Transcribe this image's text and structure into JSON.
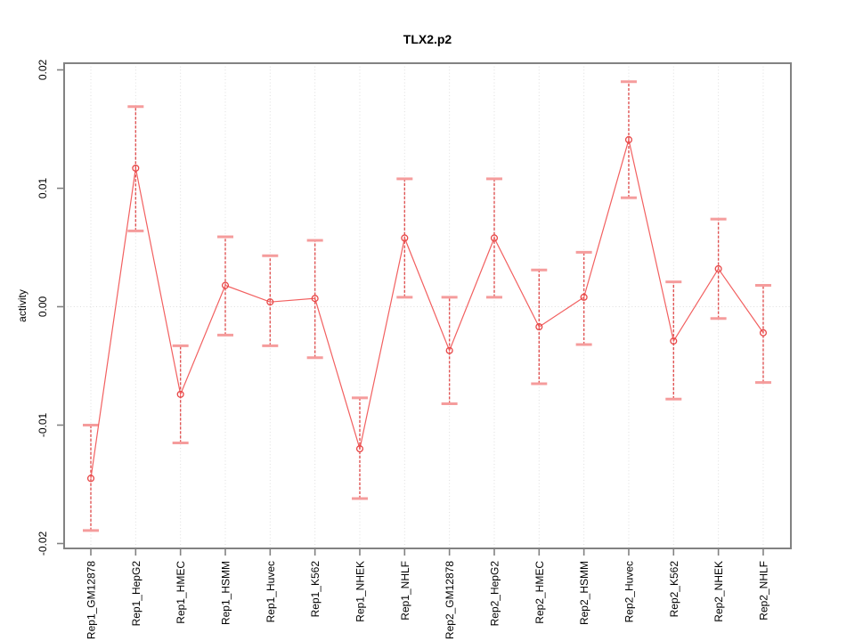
{
  "figure": {
    "background": "#ffffff"
  },
  "chart_data": {
    "type": "line",
    "title": "TLX2.p2",
    "xlabel": "",
    "ylabel": "activity",
    "ylim": [
      -0.02,
      0.02
    ],
    "ytick_values": [
      -0.02,
      -0.01,
      0,
      0.01,
      0.02
    ],
    "ytick_labels": [
      "-0.02",
      "-0.01",
      "0.00",
      "0.01",
      "0.02"
    ],
    "grid": {
      "vertical_dotted_per_category": true,
      "horizontal_dotted_zero_line": true
    },
    "legend_position": "none",
    "categories": [
      "Rep1_GM12878",
      "Rep1_HepG2",
      "Rep1_HMEC",
      "Rep1_HSMM",
      "Rep1_Huvec",
      "Rep1_K562",
      "Rep1_NHEK",
      "Rep1_NHLF",
      "Rep2_GM12878",
      "Rep2_HepG2",
      "Rep2_HMEC",
      "Rep2_HSMM",
      "Rep2_Huvec",
      "Rep2_K562",
      "Rep2_NHEK",
      "Rep2_NHLF"
    ],
    "series": [
      {
        "name": "activity",
        "marker": "open-circle",
        "values": [
          -0.0145,
          0.0117,
          -0.0074,
          0.0018,
          0.0004,
          0.0007,
          -0.012,
          0.0058,
          -0.0037,
          0.0058,
          -0.0017,
          0.0008,
          0.0141,
          -0.0029,
          0.0032,
          -0.0022
        ],
        "err_low": [
          -0.0189,
          0.0064,
          -0.0115,
          -0.0024,
          -0.0033,
          -0.0043,
          -0.0162,
          0.0008,
          -0.0082,
          0.0008,
          -0.0065,
          -0.0032,
          0.0092,
          -0.0078,
          -0.001,
          -0.0064
        ],
        "err_high": [
          -0.01,
          0.0169,
          -0.0033,
          0.0059,
          0.0043,
          0.0056,
          -0.0077,
          0.0108,
          0.0008,
          0.0108,
          0.0031,
          0.0046,
          0.019,
          0.0021,
          0.0074,
          0.0018
        ]
      }
    ],
    "colors": {
      "series_line": "#f26060",
      "marker_stroke": "#e84848",
      "error_stem": "#e05555",
      "error_cap": "#f59c9c",
      "axis_box": "#828282",
      "grid_dotted": "#dedede",
      "text": "#000000"
    }
  }
}
